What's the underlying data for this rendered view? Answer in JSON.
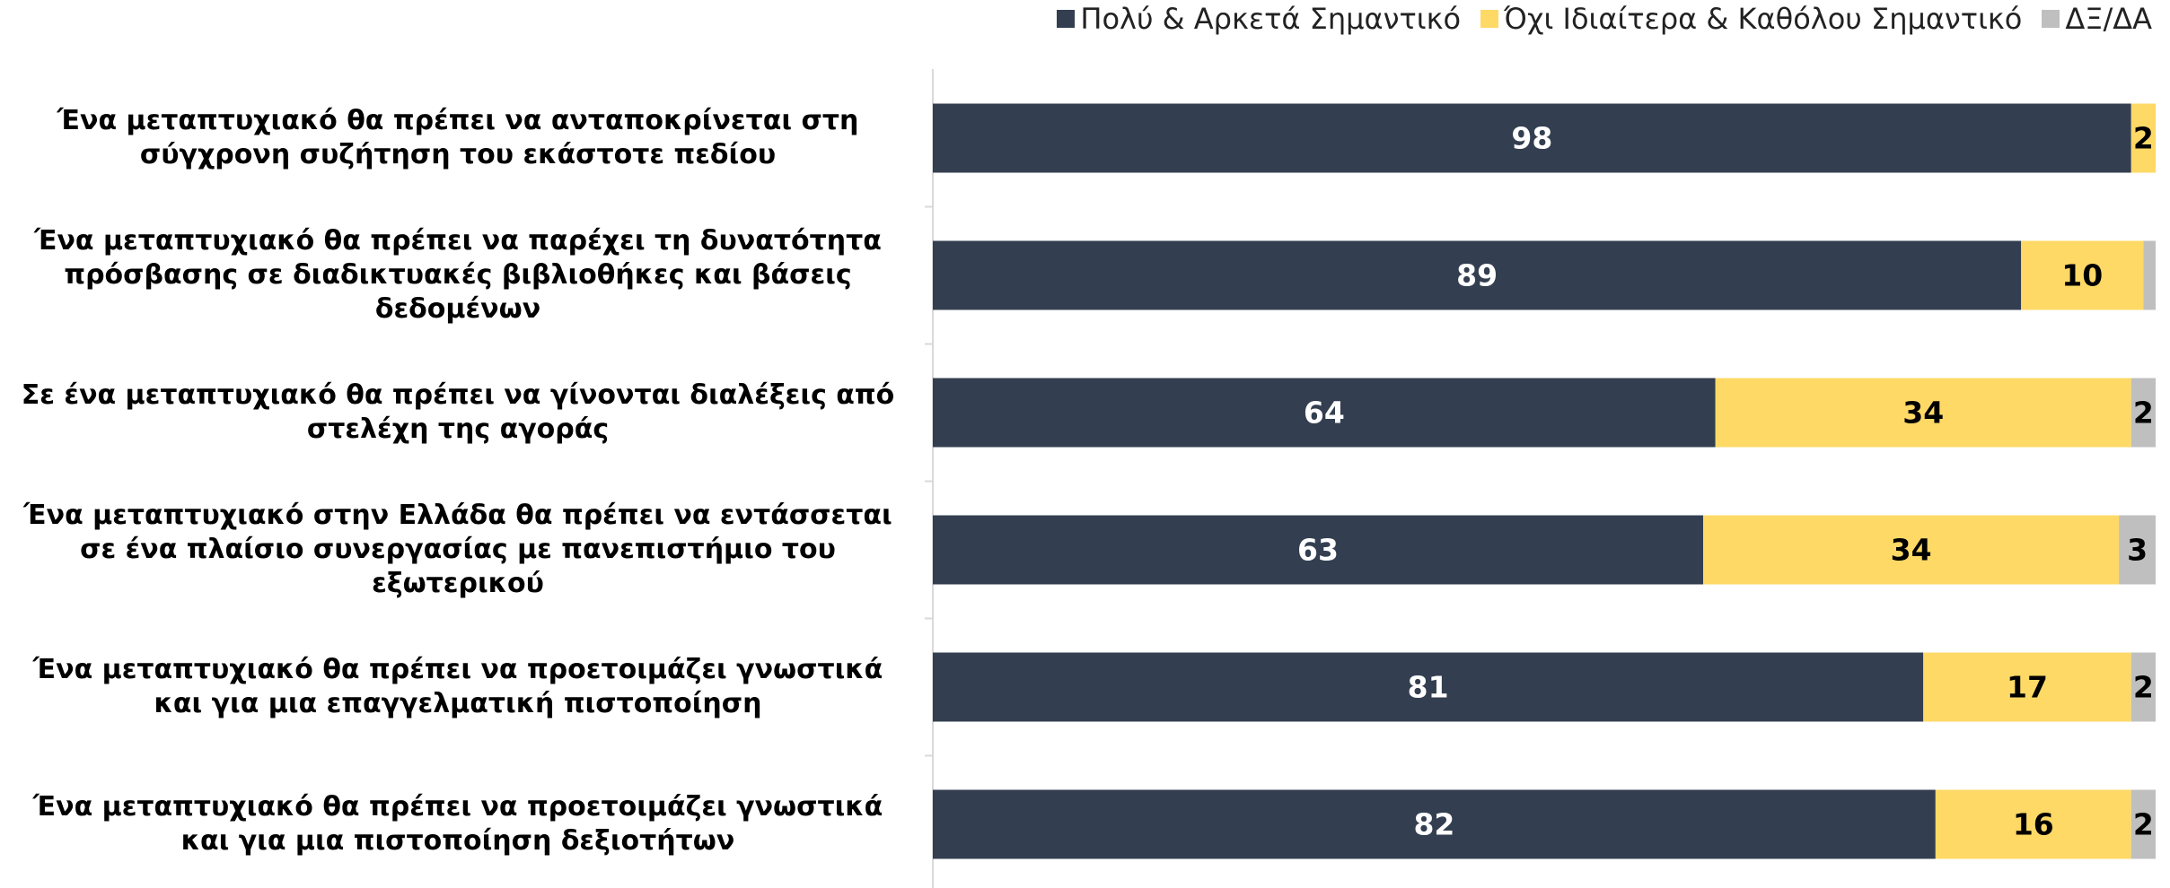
{
  "chart_data": {
    "type": "bar",
    "orientation": "horizontal",
    "stacked": true,
    "categories": [
      "Ένα μεταπτυχιακό θα πρέπει να ανταποκρίνεται στη σύγχρονη συζήτηση του εκάστοτε πεδίου",
      "Ένα μεταπτυχιακό θα πρέπει να παρέχει τη δυνατότητα πρόσβασης σε διαδικτυακές βιβλιοθήκες και βάσεις δεδομένων",
      "Σε ένα μεταπτυχιακό θα πρέπει να γίνονται διαλέξεις από στελέχη της αγοράς",
      "Ένα μεταπτυχιακό στην Ελλάδα θα πρέπει να εντάσσεται σε ένα πλαίσιο συνεργασίας με πανεπιστήμιο του εξωτερικού",
      "Ένα μεταπτυχιακό θα πρέπει να προετοιμάζει γνωστικά και για μια επαγγελματική πιστοποίηση",
      "Ένα μεταπτυχιακό θα πρέπει να προετοιμάζει γνωστικά και για μια πιστοποίηση δεξιοτήτων"
    ],
    "series": [
      {
        "name": "Πολύ & Αρκετά Σημαντικό",
        "color": "#333f50",
        "label_color": "#ffffff",
        "values": [
          98,
          89,
          64,
          63,
          81,
          82
        ]
      },
      {
        "name": "Όχι Ιδιαίτερα & Καθόλου Σημαντικό",
        "color": "#fed966",
        "label_color": "#000000",
        "values": [
          2,
          10,
          34,
          34,
          17,
          16
        ]
      },
      {
        "name": "ΔΞ/ΔΑ",
        "color": "#bfbfbf",
        "label_color": "#000000",
        "values": [
          null,
          1,
          2,
          3,
          2,
          2
        ]
      }
    ],
    "xlim": [
      0,
      100
    ],
    "legend": "top-right"
  }
}
